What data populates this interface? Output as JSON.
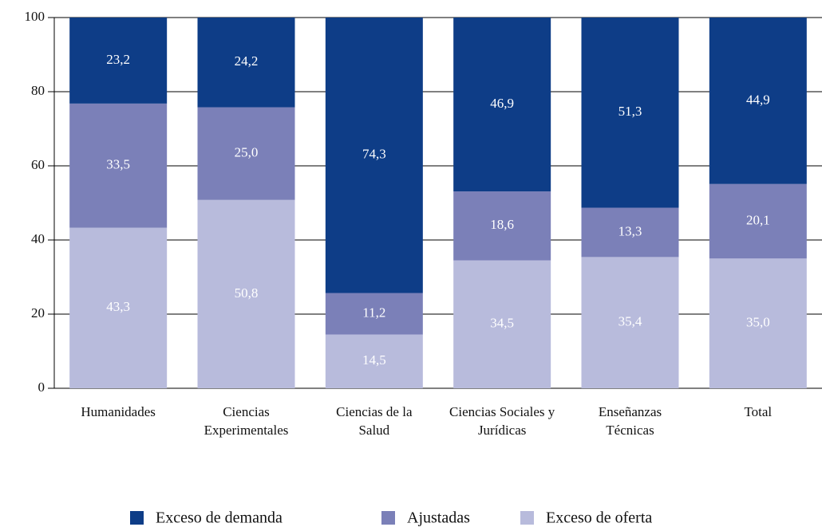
{
  "chart_data": {
    "type": "stacked_bar",
    "categories": [
      "Humanidades",
      "Ciencias Experimentales",
      "Ciencias de la Salud",
      "Ciencias Sociales y Jurídicas",
      "Enseñanzas Técnicas",
      "Total"
    ],
    "series": [
      {
        "name": "Exceso de oferta",
        "color": "#b8bbdc",
        "values": [
          43.3,
          50.8,
          14.5,
          34.5,
          35.4,
          35.0
        ],
        "value_labels": [
          "43,3",
          "50,8",
          "14,5",
          "34,5",
          "35,4",
          "35,0"
        ]
      },
      {
        "name": "Ajustadas",
        "color": "#7b80b8",
        "values": [
          33.5,
          25.0,
          11.2,
          18.6,
          13.3,
          20.1
        ],
        "value_labels": [
          "33,5",
          "25,0",
          "11,2",
          "18,6",
          "13,3",
          "20,1"
        ]
      },
      {
        "name": "Exceso de demanda",
        "color": "#0e3d87",
        "values": [
          23.2,
          24.2,
          74.3,
          46.9,
          51.3,
          44.9
        ],
        "value_labels": [
          "23,2",
          "24,2",
          "74,3",
          "46,9",
          "51,3",
          "44,9"
        ]
      }
    ],
    "ylim": [
      0,
      100
    ],
    "yticks": [
      0,
      20,
      40,
      60,
      80,
      100
    ],
    "grid": true,
    "legend": "bottom"
  }
}
